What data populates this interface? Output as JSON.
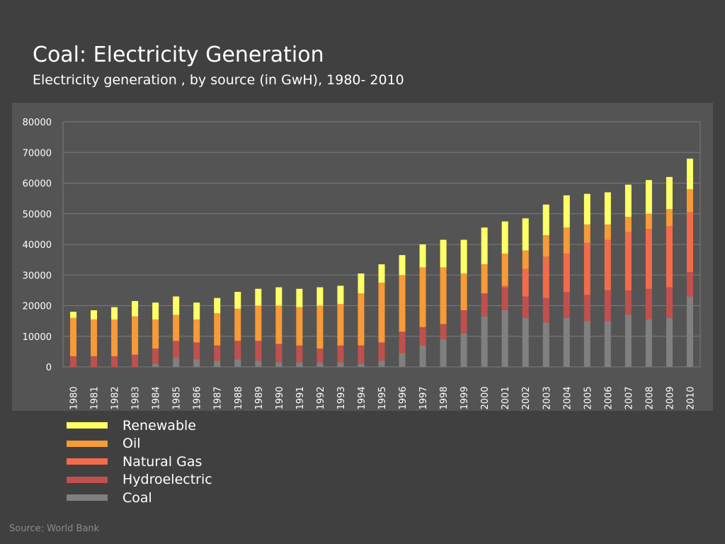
{
  "title": "Coal: Electricity Generation",
  "subtitle": "Electricity generation , by source (in GwH), 1980- 2010",
  "source": "Source: World Bank",
  "colors": {
    "background": "#404040",
    "plot_area": "#545454",
    "gridline": "#7a7a7a",
    "Coal": "#808080",
    "Hydroelectric": "#c0504d",
    "Natural Gas": "#f36b4a",
    "Oil": "#f79a38",
    "Renewable": "#ffff66"
  },
  "legend": [
    {
      "name": "Renewable",
      "color": "#ffff66"
    },
    {
      "name": "Oil",
      "color": "#f79a38"
    },
    {
      "name": "Natural Gas",
      "color": "#f36b4a"
    },
    {
      "name": "Hydroelectric",
      "color": "#c0504d"
    },
    {
      "name": "Coal",
      "color": "#808080"
    }
  ],
  "chart_data": {
    "type": "bar",
    "stacked": true,
    "title": "Coal: Electricity Generation",
    "subtitle": "Electricity generation , by source (in GwH), 1980- 2010",
    "xlabel": "",
    "ylabel": "",
    "ylim": [
      0,
      80000
    ],
    "yticks": [
      0,
      10000,
      20000,
      30000,
      40000,
      50000,
      60000,
      70000,
      80000
    ],
    "grid": true,
    "legend_position": "bottom-left",
    "categories": [
      "1980",
      "1981",
      "1982",
      "1983",
      "1984",
      "1985",
      "1986",
      "1987",
      "1988",
      "1989",
      "1990",
      "1991",
      "1992",
      "1993",
      "1994",
      "1995",
      "1996",
      "1997",
      "1998",
      "1999",
      "2000",
      "2001",
      "2002",
      "2003",
      "2004",
      "2005",
      "2006",
      "2007",
      "2008",
      "2009",
      "2010"
    ],
    "series": [
      {
        "name": "Coal",
        "values": [
          0,
          0,
          0,
          0,
          1000,
          3000,
          2500,
          2000,
          2500,
          2000,
          1500,
          1500,
          1500,
          1500,
          1000,
          2000,
          4500,
          7000,
          9000,
          11000,
          16500,
          18500,
          16000,
          14500,
          16000,
          15000,
          15000,
          17000,
          15500,
          16000,
          23000
        ]
      },
      {
        "name": "Hydroelectric",
        "values": [
          3500,
          3500,
          3500,
          4000,
          5000,
          5500,
          5500,
          5000,
          6000,
          6500,
          6000,
          5500,
          4500,
          5500,
          6000,
          6000,
          7000,
          6000,
          5000,
          7500,
          7500,
          7500,
          7000,
          8000,
          8500,
          8500,
          10000,
          8000,
          10000,
          10000,
          8000
        ]
      },
      {
        "name": "Natural Gas",
        "values": [
          0,
          0,
          0,
          0,
          0,
          0,
          0,
          0,
          0,
          0,
          0,
          0,
          0,
          0,
          0,
          0,
          0,
          0,
          0,
          0,
          0,
          500,
          9000,
          13500,
          12500,
          17000,
          16500,
          19000,
          19500,
          20000,
          19500
        ]
      },
      {
        "name": "Oil",
        "values": [
          12500,
          12000,
          12000,
          12500,
          9500,
          8500,
          7500,
          10500,
          10500,
          11500,
          12500,
          12500,
          14000,
          13500,
          17000,
          19500,
          18500,
          19500,
          18500,
          12000,
          9500,
          10500,
          6000,
          7000,
          8500,
          6000,
          5000,
          5000,
          5000,
          5500,
          7500
        ]
      },
      {
        "name": "Renewable",
        "values": [
          2000,
          3000,
          4000,
          5000,
          5500,
          6000,
          5500,
          5000,
          5500,
          5500,
          6000,
          6000,
          6000,
          6000,
          6500,
          6000,
          6500,
          7500,
          9000,
          11000,
          12000,
          10500,
          10500,
          10000,
          10500,
          10000,
          10500,
          10500,
          11000,
          10500,
          10000
        ]
      }
    ]
  }
}
